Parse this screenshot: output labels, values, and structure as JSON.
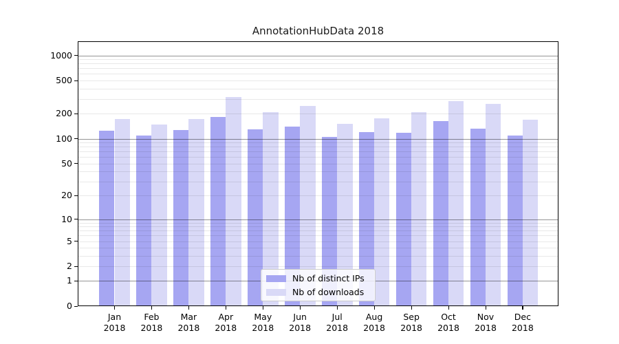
{
  "title": "AnnotationHubData 2018",
  "chart_data": {
    "type": "bar",
    "title": "AnnotationHubData 2018",
    "categories": [
      "Jan",
      "Feb",
      "Mar",
      "Apr",
      "May",
      "Jun",
      "Jul",
      "Aug",
      "Sep",
      "Oct",
      "Nov",
      "Dec"
    ],
    "x_year_line": "2018",
    "series": [
      {
        "name": "Nb of distinct IPs",
        "color": "#a6a6f2",
        "values": [
          124,
          110,
          127,
          183,
          129,
          141,
          105,
          120,
          118,
          163,
          133,
          109
        ]
      },
      {
        "name": "Nb of downloads",
        "color": "#d9d9f7",
        "values": [
          171,
          149,
          174,
          318,
          208,
          246,
          151,
          177,
          207,
          281,
          263,
          169
        ]
      }
    ],
    "y_axis": {
      "scale": "log1p",
      "tick_values": [
        1000,
        500,
        200,
        100,
        50,
        20,
        10,
        5,
        2,
        1,
        0
      ],
      "major_grid_values": [
        1,
        10,
        100,
        1000
      ],
      "minor_grid_decades": [
        1,
        10,
        100
      ],
      "top_value": 1450
    },
    "legend": {
      "position": "lower center",
      "entries": [
        "Nb of distinct IPs",
        "Nb of downloads"
      ]
    },
    "grid": true
  }
}
